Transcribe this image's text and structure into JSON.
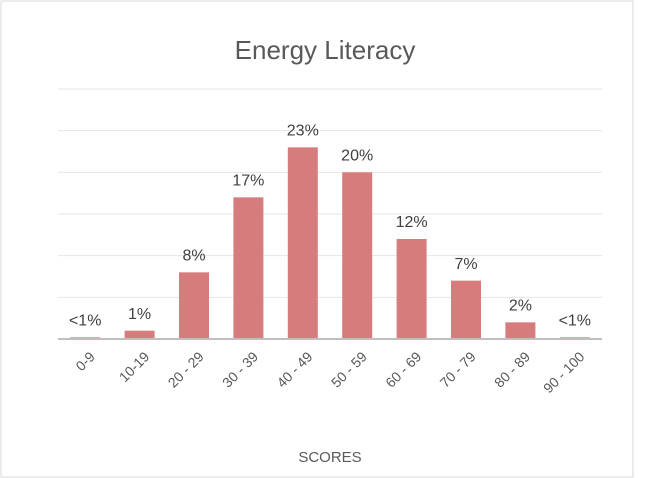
{
  "chart_data": {
    "type": "bar",
    "title": "Energy Literacy",
    "x_label": "SCORES",
    "categories": [
      "0-9",
      "10-19",
      "20 - 29",
      "30 - 39",
      "40 - 49",
      "50 - 59",
      "60 - 69",
      "70 - 79",
      "80 - 89",
      "90 - 100"
    ],
    "values": [
      0.2,
      1,
      8,
      17,
      23,
      20,
      12,
      7,
      2,
      0.2
    ],
    "value_labels": [
      "<1%",
      "1%",
      "8%",
      "17%",
      "23%",
      "20%",
      "12%",
      "7%",
      "2%",
      "<1%"
    ],
    "color": "#d67c7c",
    "ylim": [
      0,
      30
    ],
    "yticks": [
      0,
      5,
      10,
      15,
      20,
      25,
      30
    ],
    "grid": true
  }
}
